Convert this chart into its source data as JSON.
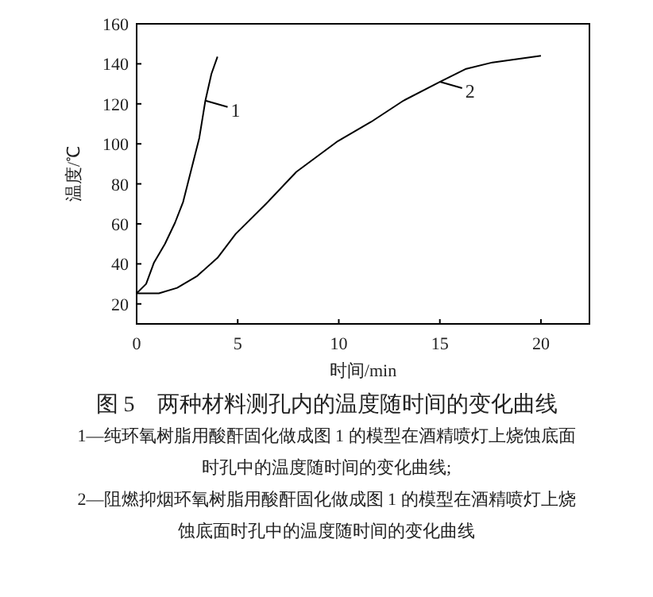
{
  "chart_data": {
    "type": "line",
    "title": "图 5　两种材料测孔内的温度随时间的变化曲线",
    "xlabel": "时间/min",
    "ylabel": "温度/℃",
    "xlim": [
      0,
      22.4
    ],
    "xticks": [
      0,
      5,
      10,
      15,
      20
    ],
    "ylim": [
      10,
      160
    ],
    "yticks": [
      20,
      40,
      60,
      80,
      100,
      120,
      140,
      160
    ],
    "grid": false,
    "series": [
      {
        "color": "#000000",
        "x": [
          0,
          0.47,
          0.86,
          1.4,
          1.9,
          2.3,
          2.7,
          3.1,
          3.4,
          3.7,
          4.0
        ],
        "values": [
          25.3,
          30,
          40.7,
          50,
          60.6,
          71,
          87,
          103,
          121.6,
          135,
          143.6
        ]
      },
      {
        "color": "#000000",
        "x": [
          0,
          1.1,
          2.0,
          3.0,
          4.0,
          4.9,
          6.4,
          7.9,
          9.9,
          11.6,
          13.2,
          15,
          16.3,
          17.6,
          20
        ],
        "values": [
          25.3,
          25.3,
          28,
          34,
          43,
          55,
          70,
          86,
          101,
          111,
          121.6,
          131,
          137.5,
          140.7,
          144
        ]
      }
    ],
    "annotations": [
      {
        "text": "1",
        "x": 3.4,
        "y": 121.6
      },
      {
        "text": "2",
        "x": 15,
        "y": 131
      },
      "1—纯环氧树脂用酸酐固化做成图 1 的模型在酒精喷灯上烧蚀底面时孔中的温度随时间的变化曲线;",
      "2—阻燃抑烟环氧树脂用酸酐固化做成图 1 的模型在酒精喷灯上烧蚀底面时孔中的温度随时间的变化曲线"
    ]
  }
}
